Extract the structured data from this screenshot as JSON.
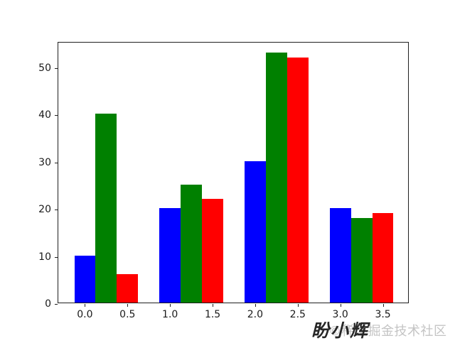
{
  "figure": {
    "background": "#ffffff",
    "frame_color": "#1f1f1f",
    "tick_label_color": "#1a1a1a",
    "watermark": {
      "author": "盼小辉",
      "community": "©稀土掘金技术社区",
      "author_color": "#262626",
      "community_color": "#c4c4c4"
    }
  },
  "chart_data": {
    "type": "bar",
    "title": "",
    "xlabel": "",
    "ylabel": "",
    "grid": false,
    "legend": "none",
    "x_groups": [
      0,
      1,
      2,
      3
    ],
    "bar_width": 0.25,
    "series": [
      {
        "name": "blue",
        "color": "#0000ff",
        "offset": 0.0,
        "values": [
          10,
          20,
          30,
          20
        ]
      },
      {
        "name": "green",
        "color": "#008000",
        "offset": 0.25,
        "values": [
          40,
          25,
          53,
          18
        ]
      },
      {
        "name": "red",
        "color": "#ff0000",
        "offset": 0.5,
        "values": [
          6,
          22,
          52,
          19
        ]
      }
    ],
    "x_tick_values": [
      0,
      0.5,
      1,
      1.5,
      2,
      2.5,
      3,
      3.5
    ],
    "x_tick_labels": [
      "0.0",
      "0.5",
      "1.0",
      "1.5",
      "2.0",
      "2.5",
      "3.0",
      "3.5"
    ],
    "y_tick_values": [
      0,
      10,
      20,
      30,
      40,
      50
    ],
    "y_tick_labels": [
      "0",
      "10",
      "20",
      "30",
      "40",
      "50"
    ],
    "xlim": [
      -0.3125,
      3.8125
    ],
    "ylim": [
      0,
      55.42
    ]
  }
}
